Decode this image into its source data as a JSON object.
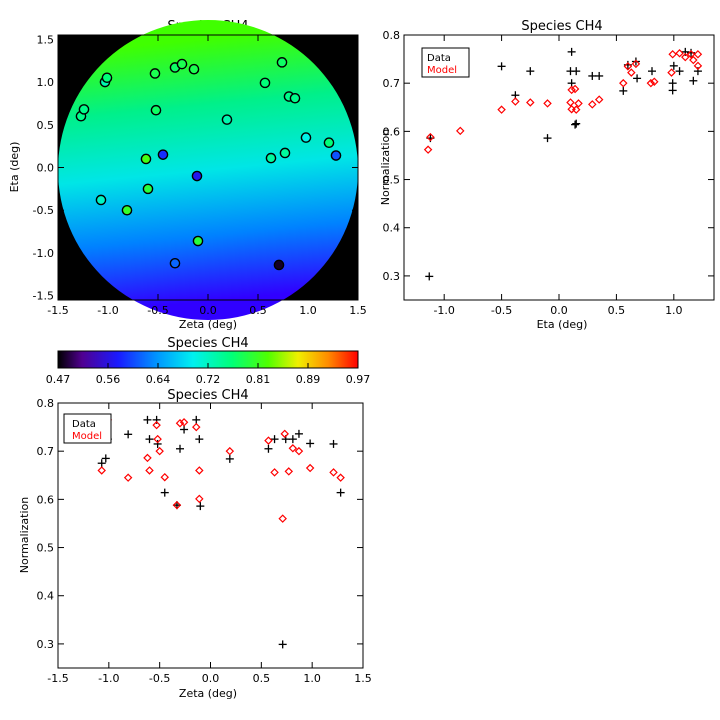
{
  "figure": {
    "colors": {
      "data_marker": "#000000",
      "model_marker": "#ff0000",
      "map_background": "#000000"
    }
  },
  "chart_data": [
    {
      "type": "scatter",
      "title": "Species CH4",
      "xlabel": "Zeta (deg)",
      "ylabel": "Eta (deg)",
      "xlim": [
        -1.5,
        1.5
      ],
      "ylim": [
        -1.55,
        1.55
      ],
      "xticks": [
        "-1.5",
        "-1.0",
        "-0.5",
        "0.0",
        "0.5",
        "1.0",
        "1.5"
      ],
      "yticks": [
        "-1.5",
        "-1.0",
        "-0.5",
        "0.0",
        "0.5",
        "1.0",
        "1.5"
      ],
      "background": "circular gradient map, value increases toward upper left",
      "colorbar": {
        "title": "Species CH4",
        "range": [
          0.47,
          0.97
        ],
        "ticks": [
          "0.47",
          "0.56",
          "0.64",
          "0.72",
          "0.81",
          "0.89",
          "0.97"
        ],
        "colormap": "rainbow"
      },
      "points": [
        {
          "zeta": -1.27,
          "eta": 0.6,
          "value": 0.75
        },
        {
          "zeta": -1.24,
          "eta": 0.68,
          "value": 0.75
        },
        {
          "zeta": -1.03,
          "eta": 1.0,
          "value": 0.73
        },
        {
          "zeta": -1.01,
          "eta": 1.05,
          "value": 0.76
        },
        {
          "zeta": -1.07,
          "eta": -0.38,
          "value": 0.72
        },
        {
          "zeta": -0.81,
          "eta": -0.5,
          "value": 0.8
        },
        {
          "zeta": -0.62,
          "eta": 0.1,
          "value": 0.81
        },
        {
          "zeta": -0.6,
          "eta": -0.25,
          "value": 0.79
        },
        {
          "zeta": -0.53,
          "eta": 1.1,
          "value": 0.78
        },
        {
          "zeta": -0.52,
          "eta": 0.67,
          "value": 0.77
        },
        {
          "zeta": -0.45,
          "eta": 0.15,
          "value": 0.58
        },
        {
          "zeta": -0.33,
          "eta": 1.17,
          "value": 0.77
        },
        {
          "zeta": -0.26,
          "eta": 1.21,
          "value": 0.78
        },
        {
          "zeta": -0.14,
          "eta": 1.15,
          "value": 0.78
        },
        {
          "zeta": -0.11,
          "eta": -0.1,
          "value": 0.56
        },
        {
          "zeta": -0.1,
          "eta": -0.86,
          "value": 0.79
        },
        {
          "zeta": -0.33,
          "eta": -1.12,
          "value": 0.61
        },
        {
          "zeta": 0.19,
          "eta": 0.56,
          "value": 0.73
        },
        {
          "zeta": 0.57,
          "eta": 0.99,
          "value": 0.76
        },
        {
          "zeta": 0.63,
          "eta": 0.11,
          "value": 0.74
        },
        {
          "zeta": 0.71,
          "eta": -1.14,
          "value": 0.48
        },
        {
          "zeta": 0.74,
          "eta": 1.23,
          "value": 0.77
        },
        {
          "zeta": 0.77,
          "eta": 0.17,
          "value": 0.74
        },
        {
          "zeta": 0.81,
          "eta": 0.83,
          "value": 0.75
        },
        {
          "zeta": 0.87,
          "eta": 0.81,
          "value": 0.75
        },
        {
          "zeta": 0.98,
          "eta": 0.35,
          "value": 0.7
        },
        {
          "zeta": 1.21,
          "eta": 0.29,
          "value": 0.76
        },
        {
          "zeta": 1.28,
          "eta": 0.14,
          "value": 0.6
        }
      ]
    },
    {
      "type": "scatter",
      "title": "Species CH4",
      "xlabel": "Eta (deg)",
      "ylabel": "Normalization",
      "xlim": [
        -1.35,
        1.35
      ],
      "ylim": [
        0.25,
        0.8
      ],
      "xticks": [
        "-1.0",
        "-0.5",
        "0.0",
        "0.5",
        "1.0"
      ],
      "yticks": [
        "0.3",
        "0.4",
        "0.5",
        "0.6",
        "0.7",
        "0.8"
      ],
      "legend": {
        "position": "top-left",
        "entries": [
          "Data",
          "Model"
        ]
      },
      "series": [
        {
          "name": "Data",
          "marker": "plus",
          "points": [
            [
              -1.13,
              0.299
            ],
            [
              -1.12,
              0.586
            ],
            [
              -0.86,
              0.725
            ],
            [
              -0.5,
              0.735
            ],
            [
              -0.38,
              0.675
            ],
            [
              -0.25,
              0.725
            ],
            [
              -0.1,
              0.586
            ],
            [
              0.11,
              0.765
            ],
            [
              0.1,
              0.725
            ],
            [
              0.11,
              0.7
            ],
            [
              0.14,
              0.614
            ],
            [
              0.15,
              0.616
            ],
            [
              0.15,
              0.725
            ],
            [
              0.29,
              0.715
            ],
            [
              0.35,
              0.715
            ],
            [
              0.56,
              0.684
            ],
            [
              0.6,
              0.738
            ],
            [
              0.67,
              0.745
            ],
            [
              0.68,
              0.71
            ],
            [
              0.81,
              0.725
            ],
            [
              0.99,
              0.7
            ],
            [
              0.99,
              0.685
            ],
            [
              1.0,
              0.736
            ],
            [
              1.05,
              0.725
            ],
            [
              1.1,
              0.765
            ],
            [
              1.15,
              0.763
            ],
            [
              1.17,
              0.705
            ],
            [
              1.21,
              0.725
            ]
          ]
        },
        {
          "name": "Model",
          "marker": "diamond",
          "points": [
            [
              -1.14,
              0.562
            ],
            [
              -1.12,
              0.588
            ],
            [
              -0.86,
              0.601
            ],
            [
              -0.5,
              0.645
            ],
            [
              -0.38,
              0.662
            ],
            [
              -0.25,
              0.66
            ],
            [
              -0.1,
              0.658
            ],
            [
              0.1,
              0.66
            ],
            [
              0.11,
              0.686
            ],
            [
              0.11,
              0.646
            ],
            [
              0.14,
              0.688
            ],
            [
              0.15,
              0.645
            ],
            [
              0.17,
              0.658
            ],
            [
              0.29,
              0.656
            ],
            [
              0.35,
              0.666
            ],
            [
              0.56,
              0.7
            ],
            [
              0.6,
              0.735
            ],
            [
              0.63,
              0.722
            ],
            [
              0.67,
              0.74
            ],
            [
              0.8,
              0.7
            ],
            [
              0.83,
              0.703
            ],
            [
              0.98,
              0.722
            ],
            [
              0.99,
              0.76
            ],
            [
              1.05,
              0.762
            ],
            [
              1.1,
              0.754
            ],
            [
              1.15,
              0.76
            ],
            [
              1.17,
              0.748
            ],
            [
              1.21,
              0.76
            ],
            [
              1.21,
              0.736
            ]
          ]
        }
      ]
    },
    {
      "type": "scatter",
      "title": "Species CH4",
      "xlabel": "Zeta (deg)",
      "ylabel": "Normalization",
      "xlim": [
        -1.5,
        1.5
      ],
      "ylim": [
        0.25,
        0.8
      ],
      "xticks": [
        "-1.5",
        "-1.0",
        "-0.5",
        "0.0",
        "0.5",
        "1.0",
        "1.5"
      ],
      "yticks": [
        "0.3",
        "0.4",
        "0.5",
        "0.6",
        "0.7",
        "0.8"
      ],
      "legend": {
        "position": "top-left",
        "entries": [
          "Data",
          "Model"
        ]
      },
      "series": [
        {
          "name": "Data",
          "marker": "plus",
          "points": [
            [
              -1.07,
              0.675
            ],
            [
              -1.03,
              0.685
            ],
            [
              -1.01,
              0.725
            ],
            [
              -0.81,
              0.735
            ],
            [
              -0.62,
              0.765
            ],
            [
              -0.6,
              0.725
            ],
            [
              -0.53,
              0.765
            ],
            [
              -0.52,
              0.715
            ],
            [
              -0.45,
              0.614
            ],
            [
              -0.33,
              0.588
            ],
            [
              -0.3,
              0.705
            ],
            [
              -0.26,
              0.745
            ],
            [
              -0.14,
              0.765
            ],
            [
              -0.11,
              0.725
            ],
            [
              -0.1,
              0.586
            ],
            [
              0.19,
              0.684
            ],
            [
              0.57,
              0.705
            ],
            [
              0.63,
              0.725
            ],
            [
              0.71,
              0.299
            ],
            [
              0.74,
              0.725
            ],
            [
              0.81,
              0.725
            ],
            [
              0.87,
              0.736
            ],
            [
              0.98,
              0.716
            ],
            [
              1.21,
              0.715
            ],
            [
              1.28,
              0.614
            ]
          ]
        },
        {
          "name": "Model",
          "marker": "diamond",
          "points": [
            [
              -1.27,
              0.76
            ],
            [
              -1.24,
              0.762
            ],
            [
              -1.07,
              0.66
            ],
            [
              -1.03,
              0.76
            ],
            [
              -1.01,
              0.765
            ],
            [
              -0.81,
              0.645
            ],
            [
              -0.62,
              0.686
            ],
            [
              -0.6,
              0.66
            ],
            [
              -0.53,
              0.754
            ],
            [
              -0.52,
              0.725
            ],
            [
              -0.5,
              0.7
            ],
            [
              -0.45,
              0.646
            ],
            [
              -0.33,
              0.588
            ],
            [
              -0.3,
              0.758
            ],
            [
              -0.26,
              0.76
            ],
            [
              -0.14,
              0.75
            ],
            [
              -0.11,
              0.66
            ],
            [
              -0.11,
              0.601
            ],
            [
              0.19,
              0.7
            ],
            [
              0.57,
              0.722
            ],
            [
              0.63,
              0.656
            ],
            [
              0.71,
              0.56
            ],
            [
              0.73,
              0.736
            ],
            [
              0.77,
              0.658
            ],
            [
              0.81,
              0.706
            ],
            [
              0.87,
              0.7
            ],
            [
              0.98,
              0.665
            ],
            [
              1.21,
              0.656
            ],
            [
              1.28,
              0.645
            ]
          ]
        }
      ]
    }
  ]
}
